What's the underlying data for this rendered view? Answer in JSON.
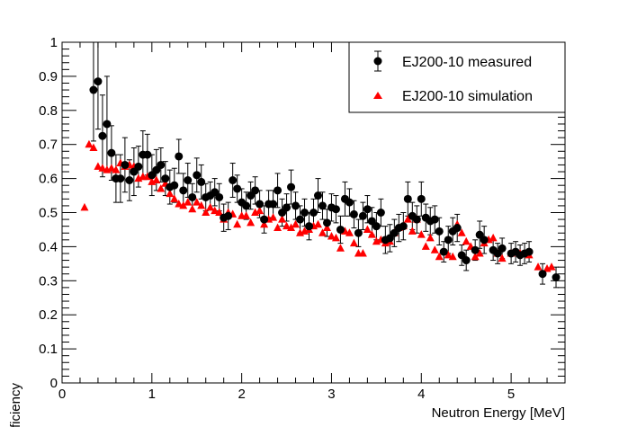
{
  "chart_data": {
    "type": "scatter",
    "xlabel": "Neutron Energy [MeV]",
    "ylabel": "Efficiency",
    "xlim": [
      0,
      5.6
    ],
    "ylim": [
      0,
      1
    ],
    "x_major_ticks": [
      0,
      1,
      2,
      3,
      4,
      5
    ],
    "x_tick_labels": [
      "0",
      "1",
      "2",
      "3",
      "4",
      "5"
    ],
    "y_major_ticks": [
      0,
      0.1,
      0.2,
      0.3,
      0.4,
      0.5,
      0.6,
      0.7,
      0.8,
      0.9,
      1
    ],
    "y_tick_labels": [
      "0",
      "0.1",
      "0.2",
      "0.3",
      "0.4",
      "0.5",
      "0.6",
      "0.7",
      "0.8",
      "0.9",
      "1"
    ],
    "legend_position": "top-right",
    "colors": {
      "measured": "#000000",
      "simulation": "#ff0000"
    },
    "series": [
      {
        "name": "EJ200-10 measured",
        "marker": "circle",
        "points": [
          [
            0.35,
            0.86,
            0.15
          ],
          [
            0.4,
            0.885,
            0.14
          ],
          [
            0.45,
            0.725,
            0.12
          ],
          [
            0.5,
            0.76,
            0.14
          ],
          [
            0.55,
            0.675,
            0.08
          ],
          [
            0.6,
            0.6,
            0.07
          ],
          [
            0.65,
            0.6,
            0.07
          ],
          [
            0.7,
            0.64,
            0.08
          ],
          [
            0.75,
            0.595,
            0.06
          ],
          [
            0.8,
            0.62,
            0.07
          ],
          [
            0.85,
            0.635,
            0.06
          ],
          [
            0.9,
            0.67,
            0.07
          ],
          [
            0.95,
            0.67,
            0.06
          ],
          [
            1.0,
            0.61,
            0.06
          ],
          [
            1.05,
            0.625,
            0.06
          ],
          [
            1.1,
            0.64,
            0.05
          ],
          [
            1.15,
            0.6,
            0.05
          ],
          [
            1.2,
            0.575,
            0.05
          ],
          [
            1.25,
            0.58,
            0.05
          ],
          [
            1.3,
            0.665,
            0.05
          ],
          [
            1.35,
            0.565,
            0.05
          ],
          [
            1.4,
            0.595,
            0.05
          ],
          [
            1.45,
            0.545,
            0.04
          ],
          [
            1.5,
            0.61,
            0.05
          ],
          [
            1.55,
            0.59,
            0.05
          ],
          [
            1.6,
            0.545,
            0.04
          ],
          [
            1.65,
            0.55,
            0.04
          ],
          [
            1.7,
            0.56,
            0.04
          ],
          [
            1.75,
            0.545,
            0.04
          ],
          [
            1.8,
            0.485,
            0.04
          ],
          [
            1.85,
            0.49,
            0.04
          ],
          [
            1.9,
            0.595,
            0.05
          ],
          [
            1.95,
            0.57,
            0.04
          ],
          [
            2.0,
            0.53,
            0.04
          ],
          [
            2.05,
            0.52,
            0.04
          ],
          [
            2.1,
            0.55,
            0.04
          ],
          [
            2.15,
            0.565,
            0.04
          ],
          [
            2.2,
            0.525,
            0.04
          ],
          [
            2.25,
            0.48,
            0.04
          ],
          [
            2.3,
            0.525,
            0.04
          ],
          [
            2.35,
            0.525,
            0.04
          ],
          [
            2.4,
            0.565,
            0.05
          ],
          [
            2.45,
            0.5,
            0.04
          ],
          [
            2.5,
            0.515,
            0.04
          ],
          [
            2.55,
            0.575,
            0.05
          ],
          [
            2.6,
            0.52,
            0.04
          ],
          [
            2.65,
            0.48,
            0.04
          ],
          [
            2.7,
            0.5,
            0.04
          ],
          [
            2.75,
            0.46,
            0.04
          ],
          [
            2.8,
            0.5,
            0.04
          ],
          [
            2.85,
            0.55,
            0.05
          ],
          [
            2.9,
            0.52,
            0.04
          ],
          [
            2.95,
            0.47,
            0.04
          ],
          [
            3.0,
            0.515,
            0.04
          ],
          [
            3.05,
            0.51,
            0.04
          ],
          [
            3.1,
            0.45,
            0.04
          ],
          [
            3.15,
            0.54,
            0.05
          ],
          [
            3.2,
            0.53,
            0.04
          ],
          [
            3.25,
            0.495,
            0.04
          ],
          [
            3.3,
            0.44,
            0.04
          ],
          [
            3.35,
            0.49,
            0.04
          ],
          [
            3.4,
            0.51,
            0.04
          ],
          [
            3.45,
            0.475,
            0.04
          ],
          [
            3.5,
            0.46,
            0.04
          ],
          [
            3.55,
            0.5,
            0.04
          ],
          [
            3.6,
            0.42,
            0.04
          ],
          [
            3.65,
            0.425,
            0.04
          ],
          [
            3.7,
            0.44,
            0.04
          ],
          [
            3.75,
            0.455,
            0.04
          ],
          [
            3.8,
            0.46,
            0.04
          ],
          [
            3.85,
            0.54,
            0.05
          ],
          [
            3.9,
            0.49,
            0.04
          ],
          [
            3.95,
            0.48,
            0.04
          ],
          [
            4.0,
            0.54,
            0.05
          ],
          [
            4.05,
            0.485,
            0.04
          ],
          [
            4.1,
            0.475,
            0.04
          ],
          [
            4.15,
            0.48,
            0.04
          ],
          [
            4.2,
            0.445,
            0.04
          ],
          [
            4.25,
            0.385,
            0.03
          ],
          [
            4.3,
            0.42,
            0.04
          ],
          [
            4.35,
            0.445,
            0.04
          ],
          [
            4.4,
            0.455,
            0.04
          ],
          [
            4.45,
            0.375,
            0.03
          ],
          [
            4.5,
            0.36,
            0.03
          ],
          [
            4.6,
            0.39,
            0.03
          ],
          [
            4.65,
            0.435,
            0.04
          ],
          [
            4.7,
            0.42,
            0.04
          ],
          [
            4.8,
            0.39,
            0.03
          ],
          [
            4.85,
            0.38,
            0.03
          ],
          [
            4.9,
            0.395,
            0.03
          ],
          [
            5.0,
            0.38,
            0.03
          ],
          [
            5.05,
            0.385,
            0.03
          ],
          [
            5.1,
            0.375,
            0.03
          ],
          [
            5.15,
            0.38,
            0.03
          ],
          [
            5.2,
            0.385,
            0.03
          ],
          [
            5.35,
            0.32,
            0.03
          ],
          [
            5.5,
            0.31,
            0.03
          ]
        ]
      },
      {
        "name": "EJ200-10 simulation",
        "marker": "triangle",
        "points": [
          [
            0.25,
            0.515
          ],
          [
            0.3,
            0.7
          ],
          [
            0.35,
            0.69
          ],
          [
            0.4,
            0.635
          ],
          [
            0.45,
            0.63
          ],
          [
            0.5,
            0.625
          ],
          [
            0.55,
            0.63
          ],
          [
            0.6,
            0.625
          ],
          [
            0.65,
            0.645
          ],
          [
            0.7,
            0.635
          ],
          [
            0.75,
            0.64
          ],
          [
            0.8,
            0.635
          ],
          [
            0.85,
            0.6
          ],
          [
            0.9,
            0.605
          ],
          [
            0.95,
            0.605
          ],
          [
            1.0,
            0.59
          ],
          [
            1.05,
            0.595
          ],
          [
            1.1,
            0.57
          ],
          [
            1.15,
            0.585
          ],
          [
            1.2,
            0.555
          ],
          [
            1.25,
            0.54
          ],
          [
            1.3,
            0.525
          ],
          [
            1.35,
            0.52
          ],
          [
            1.4,
            0.53
          ],
          [
            1.45,
            0.51
          ],
          [
            1.5,
            0.53
          ],
          [
            1.55,
            0.52
          ],
          [
            1.6,
            0.5
          ],
          [
            1.65,
            0.515
          ],
          [
            1.7,
            0.505
          ],
          [
            1.75,
            0.5
          ],
          [
            1.8,
            0.48
          ],
          [
            1.85,
            0.5
          ],
          [
            1.9,
            0.495
          ],
          [
            1.95,
            0.465
          ],
          [
            2.0,
            0.49
          ],
          [
            2.05,
            0.49
          ],
          [
            2.1,
            0.47
          ],
          [
            2.15,
            0.5
          ],
          [
            2.2,
            0.505
          ],
          [
            2.25,
            0.465
          ],
          [
            2.3,
            0.48
          ],
          [
            2.35,
            0.485
          ],
          [
            2.4,
            0.455
          ],
          [
            2.45,
            0.48
          ],
          [
            2.5,
            0.46
          ],
          [
            2.55,
            0.455
          ],
          [
            2.6,
            0.465
          ],
          [
            2.65,
            0.44
          ],
          [
            2.7,
            0.445
          ],
          [
            2.75,
            0.45
          ],
          [
            2.8,
            0.46
          ],
          [
            2.85,
            0.465
          ],
          [
            2.9,
            0.44
          ],
          [
            2.95,
            0.455
          ],
          [
            3.0,
            0.43
          ],
          [
            3.05,
            0.425
          ],
          [
            3.1,
            0.395
          ],
          [
            3.15,
            0.445
          ],
          [
            3.2,
            0.44
          ],
          [
            3.25,
            0.41
          ],
          [
            3.3,
            0.38
          ],
          [
            3.35,
            0.38
          ],
          [
            3.4,
            0.45
          ],
          [
            3.45,
            0.435
          ],
          [
            3.5,
            0.415
          ],
          [
            3.55,
            0.42
          ],
          [
            3.6,
            0.41
          ],
          [
            3.65,
            0.415
          ],
          [
            3.7,
            0.44
          ],
          [
            3.75,
            0.455
          ],
          [
            3.8,
            0.46
          ],
          [
            3.85,
            0.48
          ],
          [
            3.9,
            0.445
          ],
          [
            3.95,
            0.48
          ],
          [
            4.0,
            0.435
          ],
          [
            4.05,
            0.4
          ],
          [
            4.1,
            0.425
          ],
          [
            4.15,
            0.39
          ],
          [
            4.2,
            0.37
          ],
          [
            4.25,
            0.385
          ],
          [
            4.3,
            0.375
          ],
          [
            4.35,
            0.37
          ],
          [
            4.4,
            0.465
          ],
          [
            4.45,
            0.44
          ],
          [
            4.5,
            0.415
          ],
          [
            4.55,
            0.4
          ],
          [
            4.6,
            0.37
          ],
          [
            4.65,
            0.38
          ],
          [
            4.7,
            0.41
          ],
          [
            4.75,
            0.42
          ],
          [
            4.8,
            0.425
          ],
          [
            4.85,
            0.38
          ],
          [
            4.9,
            0.365
          ],
          [
            5.0,
            0.38
          ],
          [
            5.1,
            0.38
          ],
          [
            5.2,
            0.375
          ],
          [
            5.3,
            0.34
          ],
          [
            5.4,
            0.335
          ],
          [
            5.45,
            0.34
          ]
        ]
      }
    ]
  }
}
